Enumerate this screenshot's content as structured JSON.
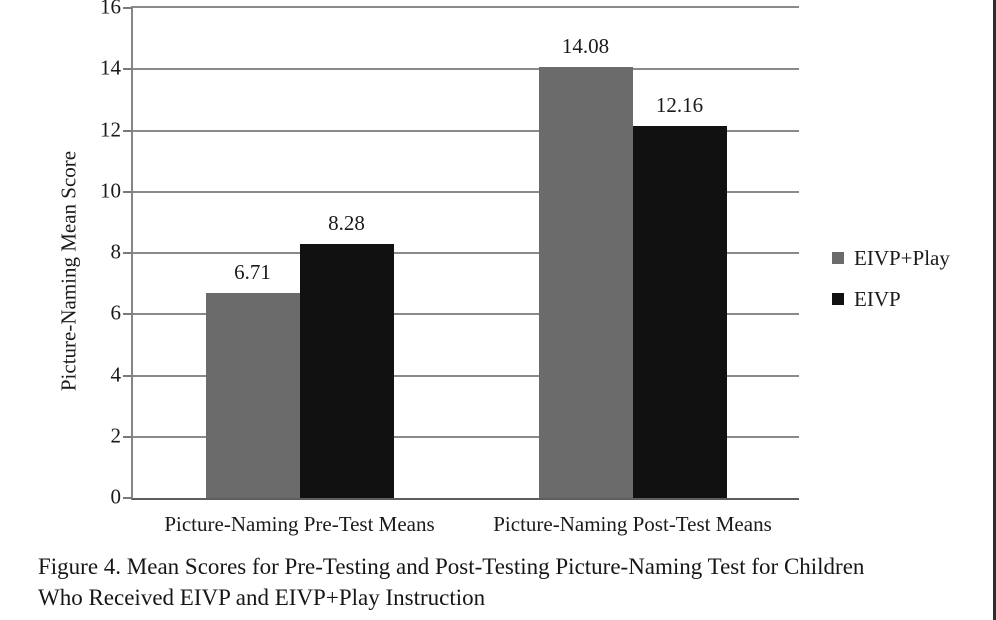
{
  "figure": {
    "caption": "Figure 4. Mean Scores for Pre-Testing and Post-Testing Picture-Naming Test for Children\nWho Received EIVP and EIVP+Play Instruction"
  },
  "chart_data": {
    "type": "bar",
    "title": "",
    "xlabel": "",
    "ylabel": "Picture-Naming Mean Score",
    "ylim": [
      0,
      16
    ],
    "yticks": [
      0,
      2,
      4,
      6,
      8,
      10,
      12,
      14,
      16
    ],
    "grid": "horizontal",
    "legend_position": "right",
    "data_labels": true,
    "categories": [
      "Picture-Naming Pre-Test Means",
      "Picture-Naming Post-Test Means"
    ],
    "series": [
      {
        "name": "EIVP+Play",
        "color": "#6b6b6b",
        "values": [
          6.71,
          14.08
        ]
      },
      {
        "name": "EIVP",
        "color": "#111111",
        "values": [
          8.28,
          12.16
        ]
      }
    ]
  },
  "colors": {
    "gridline": "#8a8a8a",
    "axis": "#5d5d5d",
    "text": "#1a1a1a",
    "background": "#ffffff",
    "edge_line": "#2e2e2e"
  }
}
